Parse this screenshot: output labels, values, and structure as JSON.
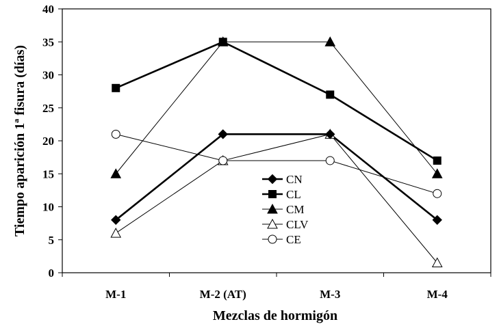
{
  "chart_data": {
    "type": "line",
    "categories": [
      "M-1",
      "M-2 (AT)",
      "M-3",
      "M-4"
    ],
    "xlabel": "Mezclas de hormigón",
    "ylabel": "Tiempo aparición 1ª fisura (días)",
    "ylim": [
      0,
      40
    ],
    "yticks": [
      0,
      5,
      10,
      15,
      20,
      25,
      30,
      35,
      40
    ],
    "grid": false,
    "legend_position": "center",
    "series": [
      {
        "name": "CN",
        "values": [
          8,
          21,
          21,
          8
        ],
        "marker": "diamond-filled",
        "line": "thick"
      },
      {
        "name": "CL",
        "values": [
          28,
          35,
          27,
          17
        ],
        "marker": "square-filled",
        "line": "thick"
      },
      {
        "name": "CM",
        "values": [
          15,
          35,
          35,
          15
        ],
        "marker": "triangle-filled",
        "line": "thin"
      },
      {
        "name": "CLV",
        "values": [
          6,
          17,
          21,
          1.5
        ],
        "marker": "triangle-open",
        "line": "thin"
      },
      {
        "name": "CE",
        "values": [
          21,
          17,
          17,
          12
        ],
        "marker": "circle-open",
        "line": "thin"
      }
    ]
  }
}
